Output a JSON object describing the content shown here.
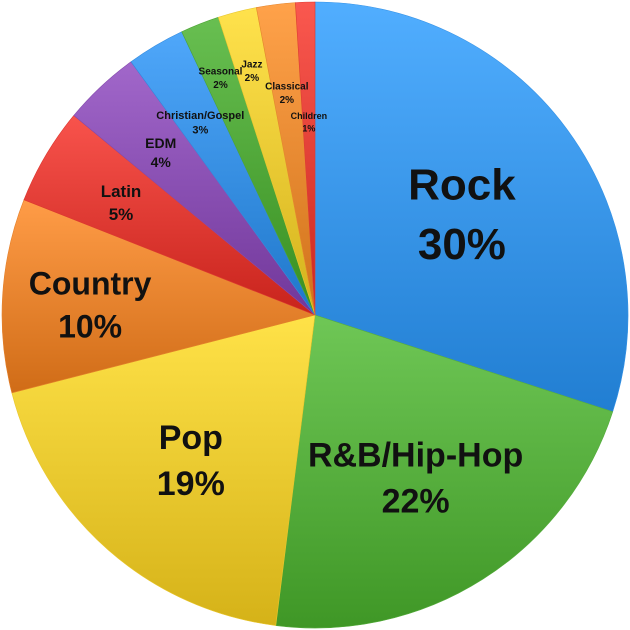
{
  "chart_data": {
    "type": "pie",
    "title": "",
    "slices": [
      {
        "label": "Rock",
        "value": 30,
        "display": "30%",
        "color": "#3f9cf0"
      },
      {
        "label": "R&B/Hip-Hop",
        "value": 22,
        "display": "22%",
        "color": "#5db544"
      },
      {
        "label": "Pop",
        "value": 19,
        "display": "19%",
        "color": "#f3d036"
      },
      {
        "label": "Country",
        "value": 10,
        "display": "10%",
        "color": "#ee8a35"
      },
      {
        "label": "Latin",
        "value": 5,
        "display": "5%",
        "color": "#e6413a"
      },
      {
        "label": "EDM",
        "value": 4,
        "display": "4%",
        "color": "#8f55b8"
      },
      {
        "label": "Christian/Gospel",
        "value": 3,
        "display": "3%",
        "color": "#3d95e8"
      },
      {
        "label": "Seasonal",
        "value": 2,
        "display": "2%",
        "color": "#56ad3f"
      },
      {
        "label": "Jazz",
        "value": 2,
        "display": "2%",
        "color": "#f2d03a"
      },
      {
        "label": "Classical",
        "value": 2,
        "display": "2%",
        "color": "#ee9038"
      },
      {
        "label": "Children",
        "value": 1,
        "display": "1%",
        "color": "#e8463d"
      }
    ]
  }
}
